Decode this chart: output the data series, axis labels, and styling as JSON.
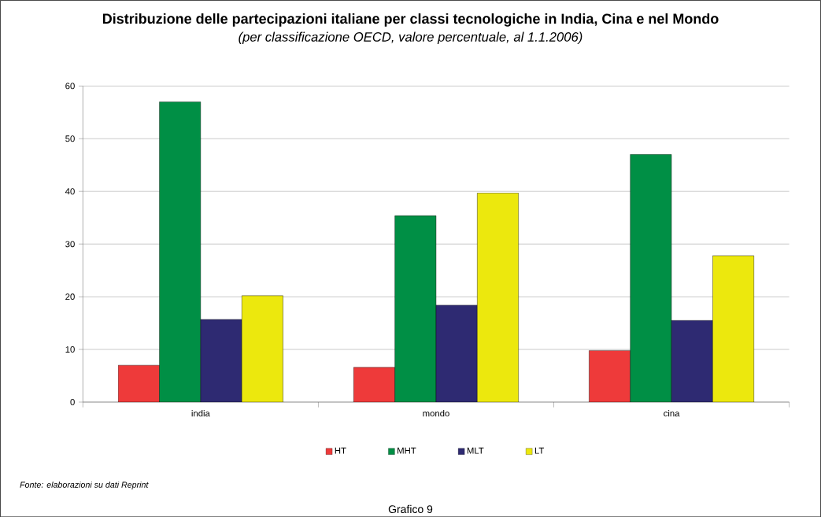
{
  "chart_data": {
    "type": "bar",
    "title": "Distribuzione delle partecipazioni italiane per classi tecnologiche in India, Cina e nel Mondo",
    "subtitle": "(per classificazione OECD, valore percentuale, al 1.1.2006)",
    "categories": [
      "india",
      "mondo",
      "cina"
    ],
    "series": [
      {
        "name": "HT",
        "color": "#ee3a3a",
        "values": [
          7.0,
          6.6,
          9.8
        ]
      },
      {
        "name": "MHT",
        "color": "#008f45",
        "values": [
          57.0,
          35.4,
          47.0
        ]
      },
      {
        "name": "MLT",
        "color": "#2e2a72",
        "values": [
          15.7,
          18.4,
          15.5
        ]
      },
      {
        "name": "LT",
        "color": "#ece80d",
        "values": [
          20.2,
          39.7,
          27.8
        ]
      }
    ],
    "ylim": [
      0,
      60
    ],
    "yticks": [
      0,
      10,
      20,
      30,
      40,
      50,
      60
    ],
    "grid": "y",
    "legend": "bottom",
    "annotations": [
      "Fonte: elaborazioni su dati Reprint",
      "Grafico 9"
    ]
  }
}
